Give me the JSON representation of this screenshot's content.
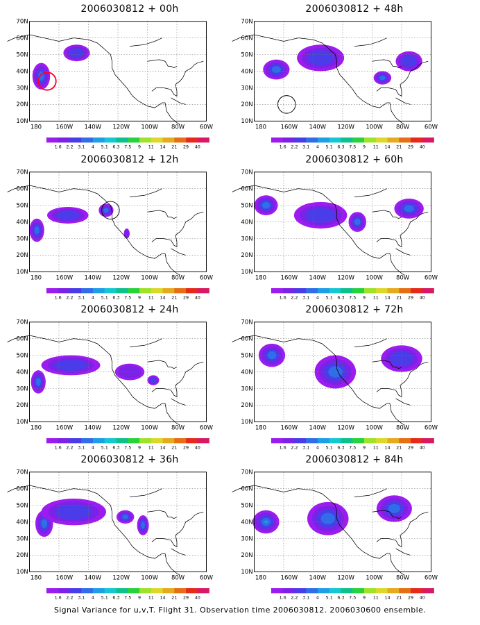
{
  "footer": "Signal Variance for u,v,T. Flight 31. Observation time 2006030812. 2006030600 ensemble.",
  "lat_labels": [
    "70N",
    "60N",
    "50N",
    "40N",
    "30N",
    "20N",
    "10N"
  ],
  "lon_labels": [
    "180",
    "160W",
    "140W",
    "120W",
    "100W",
    "80W",
    "60W"
  ],
  "colorbar": {
    "labels": [
      "1.6",
      "2.2",
      "3.1",
      "4",
      "5.1",
      "6.3",
      "7.5",
      "9",
      "11",
      "14",
      "21",
      "29",
      "40"
    ],
    "colors": [
      "#9c1cf0",
      "#7a22e6",
      "#4a3ce8",
      "#2f6ee8",
      "#1e9ee6",
      "#14c8d2",
      "#10c08c",
      "#28d23c",
      "#9ee22a",
      "#dcd82a",
      "#e6aa1e",
      "#e66e14",
      "#e8281a",
      "#d81a64"
    ]
  },
  "panels": [
    {
      "title": "2006030812 + 00h",
      "blobs": [
        {
          "cx": 172,
          "cy": 37,
          "rx": 6,
          "ry": 8,
          "level": 3
        },
        {
          "cx": 148,
          "cy": 51,
          "rx": 9,
          "ry": 5,
          "level": 2
        }
      ],
      "circle": {
        "cx": 168,
        "cy": 34,
        "r": 6,
        "color": "#ff0033"
      }
    },
    {
      "title": "2006030812 + 12h",
      "blobs": [
        {
          "cx": 175,
          "cy": 35,
          "rx": 5,
          "ry": 7,
          "level": 3
        },
        {
          "cx": 154,
          "cy": 44,
          "rx": 14,
          "ry": 5,
          "level": 2
        },
        {
          "cx": 128,
          "cy": 47,
          "rx": 5,
          "ry": 4,
          "level": 3
        },
        {
          "cx": 114,
          "cy": 33,
          "rx": 2,
          "ry": 3,
          "level": 1
        }
      ],
      "circle": {
        "cx": 125,
        "cy": 47,
        "r": 6,
        "color": "#000000"
      }
    },
    {
      "title": "2006030812 + 24h",
      "blobs": [
        {
          "cx": 174,
          "cy": 34,
          "rx": 5,
          "ry": 7,
          "level": 3
        },
        {
          "cx": 152,
          "cy": 44,
          "rx": 20,
          "ry": 6,
          "level": 2
        },
        {
          "cx": 112,
          "cy": 40,
          "rx": 10,
          "ry": 5,
          "level": 1
        },
        {
          "cx": 96,
          "cy": 35,
          "rx": 4,
          "ry": 3,
          "level": 2
        }
      ],
      "circle": null
    },
    {
      "title": "2006030812 + 36h",
      "blobs": [
        {
          "cx": 170,
          "cy": 39,
          "rx": 6,
          "ry": 8,
          "level": 3
        },
        {
          "cx": 150,
          "cy": 46,
          "rx": 22,
          "ry": 8,
          "level": 2
        },
        {
          "cx": 115,
          "cy": 43,
          "rx": 6,
          "ry": 4,
          "level": 3
        },
        {
          "cx": 103,
          "cy": 38,
          "rx": 4,
          "ry": 6,
          "level": 3
        }
      ],
      "circle": null
    },
    {
      "title": "2006030812 + 48h",
      "blobs": [
        {
          "cx": 165,
          "cy": 41,
          "rx": 9,
          "ry": 6,
          "level": 3
        },
        {
          "cx": 135,
          "cy": 48,
          "rx": 16,
          "ry": 8,
          "level": 2
        },
        {
          "cx": 93,
          "cy": 36,
          "rx": 6,
          "ry": 4,
          "level": 3
        },
        {
          "cx": 75,
          "cy": 46,
          "rx": 9,
          "ry": 6,
          "level": 2
        }
      ],
      "circle": {
        "cx": 158,
        "cy": 20,
        "r": 6,
        "color": "#000000"
      }
    },
    {
      "title": "2006030812 + 60h",
      "blobs": [
        {
          "cx": 172,
          "cy": 50,
          "rx": 8,
          "ry": 6,
          "level": 3
        },
        {
          "cx": 135,
          "cy": 44,
          "rx": 18,
          "ry": 8,
          "level": 2
        },
        {
          "cx": 110,
          "cy": 40,
          "rx": 6,
          "ry": 6,
          "level": 3
        },
        {
          "cx": 75,
          "cy": 48,
          "rx": 10,
          "ry": 6,
          "level": 3
        }
      ],
      "circle": null
    },
    {
      "title": "2006030812 + 72h",
      "blobs": [
        {
          "cx": 168,
          "cy": 50,
          "rx": 9,
          "ry": 7,
          "level": 3
        },
        {
          "cx": 125,
          "cy": 40,
          "rx": 14,
          "ry": 10,
          "level": 3
        },
        {
          "cx": 80,
          "cy": 48,
          "rx": 14,
          "ry": 8,
          "level": 2
        }
      ],
      "circle": null
    },
    {
      "title": "2006030812 + 84h",
      "blobs": [
        {
          "cx": 172,
          "cy": 40,
          "rx": 9,
          "ry": 7,
          "level": 4
        },
        {
          "cx": 130,
          "cy": 42,
          "rx": 14,
          "ry": 10,
          "level": 3
        },
        {
          "cx": 85,
          "cy": 48,
          "rx": 12,
          "ry": 8,
          "level": 3
        }
      ],
      "circle": null
    }
  ]
}
